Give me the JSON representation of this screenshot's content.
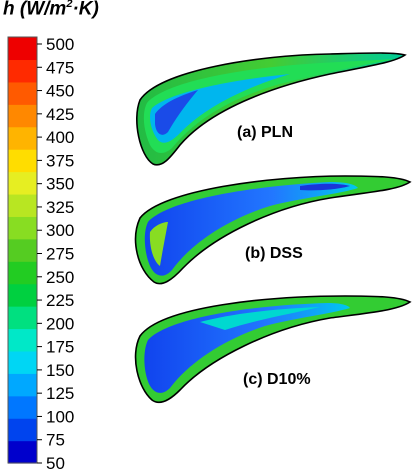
{
  "title": {
    "prefix": "h (W/m",
    "sup": "2",
    "suffix": "·K)"
  },
  "colorbar": {
    "min": 50,
    "max": 500,
    "ticks": [
      "500",
      "475",
      "450",
      "425",
      "400",
      "375",
      "350",
      "325",
      "300",
      "275",
      "250",
      "225",
      "200",
      "175",
      "150",
      "125",
      "100",
      "75",
      "50"
    ],
    "colors": [
      "#0000cc",
      "#0044ee",
      "#0077ff",
      "#00a8ff",
      "#00d6f4",
      "#00e8c8",
      "#00e080",
      "#00d040",
      "#22cc22",
      "#55cc22",
      "#88dd22",
      "#b8e622",
      "#e6ee22",
      "#ffdd00",
      "#ffb400",
      "#ff8800",
      "#ff5a00",
      "#ff2a00",
      "#ee0000"
    ]
  },
  "panels": [
    {
      "label": "(a) PLN"
    },
    {
      "label": "(b) DSS"
    },
    {
      "label": "(c) D10%"
    }
  ]
}
